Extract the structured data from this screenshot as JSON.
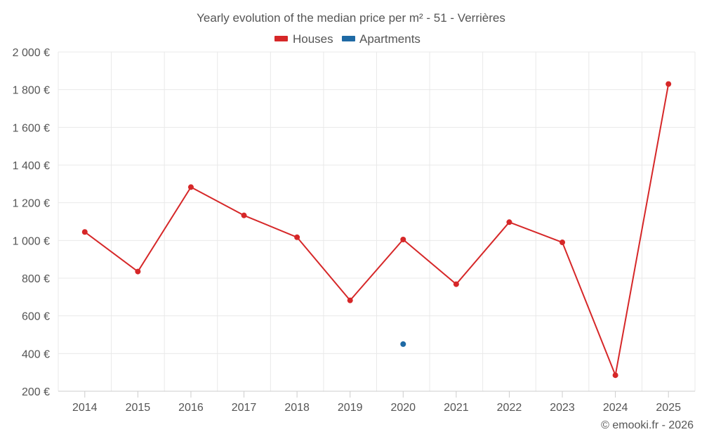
{
  "chart_data": {
    "type": "line",
    "title": "Yearly evolution of the median price per m² - 51 - Verrières",
    "categories": [
      "2014",
      "2015",
      "2016",
      "2017",
      "2018",
      "2019",
      "2020",
      "2021",
      "2022",
      "2023",
      "2024",
      "2025"
    ],
    "series": [
      {
        "name": "Houses",
        "color": "#d62728",
        "values": [
          1045,
          835,
          1283,
          1133,
          1017,
          682,
          1005,
          768,
          1097,
          990,
          285,
          1830
        ]
      },
      {
        "name": "Apartments",
        "color": "#1f6aa5",
        "values": [
          null,
          null,
          null,
          null,
          null,
          null,
          450,
          null,
          null,
          null,
          null,
          null
        ]
      }
    ],
    "y_ticks": [
      200,
      400,
      600,
      800,
      1000,
      1200,
      1400,
      1600,
      1800,
      2000
    ],
    "y_tick_labels": [
      "200 €",
      "400 €",
      "600 €",
      "800 €",
      "1 000 €",
      "1 200 €",
      "1 400 €",
      "1 600 €",
      "1 800 €",
      "2 000 €"
    ],
    "ylim": [
      200,
      2000
    ],
    "xlabel": "",
    "ylabel": "",
    "grid": true,
    "legend_position": "top-center"
  },
  "credit": "© emooki.fr - 2026"
}
